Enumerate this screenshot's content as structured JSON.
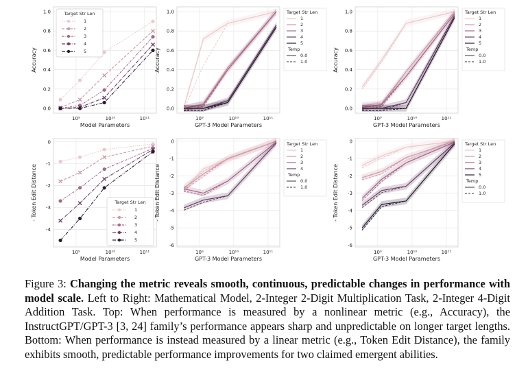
{
  "caption": {
    "label": "Figure 3:",
    "bold": "Changing the metric reveals smooth, continuous, predictable changes in performance with model scale.",
    "text": "Left to Right: Mathematical Model, 2-Integer 2-Digit Multiplication Task, 2-Integer 4-Digit Addition Task. Top: When performance is measured by a nonlinear metric (e.g., Accuracy), the InstructGPT/GPT-3 [3, 24] family’s performance appears sharp and unpredictable on longer target lengths. Bottom: When performance is instead measured by a linear metric (e.g., Token Edit Distance), the family exhibits smooth, predictable performance improvements for two claimed emergent abilities."
  },
  "colors": {
    "series": [
      "#ecc9cb",
      "#cf97a6",
      "#a56788",
      "#6b3f66",
      "#2b1a33"
    ],
    "grid": "#e6e6e6",
    "band": "#f6dede"
  },
  "chart_data": [
    {
      "type": "line",
      "xlabel": "Model Parameters",
      "ylabel": "Accuracy",
      "xscale": "log",
      "xlim": [
        220000000.0,
        220000000000.0
      ],
      "ylim": [
        -0.05,
        1.05
      ],
      "x_ticks": [
        "10⁹",
        "10¹⁰",
        "10¹¹"
      ],
      "y_ticks": [
        "0.0",
        "0.2",
        "0.4",
        "0.6",
        "0.8",
        "1.0"
      ],
      "legend": {
        "title": "Target Str Len",
        "entries": [
          "1",
          "2",
          "3",
          "4",
          "5"
        ],
        "placement": "top-left"
      },
      "x": [
        350000000.0,
        1300000000.0,
        6700000000.0,
        175000000000.0
      ],
      "series": [
        {
          "name": "1",
          "values": [
            0.09,
            0.29,
            0.58,
            0.9
          ]
        },
        {
          "name": "2",
          "values": [
            0.01,
            0.09,
            0.34,
            0.8
          ]
        },
        {
          "name": "3",
          "values": [
            0.0,
            0.03,
            0.19,
            0.74
          ]
        },
        {
          "name": "4",
          "values": [
            0.0,
            0.01,
            0.11,
            0.66
          ]
        },
        {
          "name": "5",
          "values": [
            0.0,
            0.0,
            0.06,
            0.6
          ]
        }
      ]
    },
    {
      "type": "line",
      "xlabel": "GPT-3 Model Parameters",
      "ylabel": "Accuracy",
      "xscale": "log",
      "xlim": [
        220000000.0,
        220000000000.0
      ],
      "ylim": [
        -0.05,
        1.05
      ],
      "x_ticks": [
        "10⁹",
        "10¹⁰",
        "10¹¹"
      ],
      "y_ticks": [
        "0.0",
        "0.2",
        "0.4",
        "0.6",
        "0.8",
        "1.0"
      ],
      "legend": {
        "title": "Target Str Len",
        "entries": [
          "1",
          "2",
          "3",
          "4",
          "5"
        ],
        "subtitle": "Temp",
        "style_entries": [
          "0.0",
          "1.0"
        ],
        "placement": "outside-right"
      },
      "x": [
        350000000.0,
        1300000000.0,
        6700000000.0,
        175000000000.0
      ],
      "series": [
        {
          "name": "1",
          "values": [
            0.01,
            0.72,
            0.88,
            1.0
          ]
        },
        {
          "name": "2",
          "values": [
            0.0,
            0.05,
            0.42,
            1.0
          ]
        },
        {
          "name": "3",
          "values": [
            0.0,
            0.04,
            0.4,
            1.0
          ]
        },
        {
          "name": "4",
          "values": [
            0.0,
            0.0,
            0.08,
            0.86
          ]
        },
        {
          "name": "5",
          "values": [
            0.0,
            0.0,
            0.06,
            0.84
          ]
        }
      ]
    },
    {
      "type": "line",
      "xlabel": "GPT-3 Model Parameters",
      "ylabel": "Accuracy",
      "xscale": "log",
      "xlim": [
        220000000.0,
        220000000000.0
      ],
      "ylim": [
        -0.05,
        1.05
      ],
      "x_ticks": [
        "10⁹",
        "10¹⁰",
        "10¹¹"
      ],
      "y_ticks": [
        "0.0",
        "0.2",
        "0.4",
        "0.6",
        "0.8",
        "1.0"
      ],
      "legend": {
        "title": "Target Str Len",
        "entries": [
          "1",
          "2",
          "3",
          "4",
          "5"
        ],
        "subtitle": "Temp",
        "style_entries": [
          "0.0",
          "1.0"
        ],
        "placement": "outside-right"
      },
      "x": [
        350000000.0,
        1300000000.0,
        6700000000.0,
        175000000000.0
      ],
      "series": [
        {
          "name": "1",
          "values": [
            0.22,
            0.5,
            0.88,
            1.0
          ]
        },
        {
          "name": "2",
          "values": [
            0.03,
            0.05,
            0.38,
            1.0
          ]
        },
        {
          "name": "3",
          "values": [
            0.01,
            0.04,
            0.33,
            0.98
          ]
        },
        {
          "name": "4",
          "values": [
            0.0,
            0.0,
            0.06,
            0.96
          ]
        },
        {
          "name": "5",
          "values": [
            0.0,
            0.0,
            0.0,
            0.94
          ]
        }
      ]
    },
    {
      "type": "line",
      "xlabel": "Model Parameters",
      "ylabel": "- Token Edit Distance",
      "xscale": "log",
      "xlim": [
        220000000.0,
        220000000000.0
      ],
      "ylim": [
        -4.8,
        0.15
      ],
      "x_ticks": [
        "10⁹",
        "10¹⁰",
        "10¹¹"
      ],
      "y_ticks": [
        "0",
        "-1",
        "-2",
        "-3",
        "-4"
      ],
      "legend": {
        "title": "Target Str Len",
        "entries": [
          "1",
          "2",
          "3",
          "4",
          "5"
        ],
        "placement": "bottom-right"
      },
      "x": [
        350000000.0,
        1300000000.0,
        6700000000.0,
        175000000000.0
      ],
      "series": [
        {
          "name": "1",
          "values": [
            -0.9,
            -0.7,
            -0.35,
            -0.1
          ]
        },
        {
          "name": "2",
          "values": [
            -1.8,
            -1.4,
            -0.7,
            -0.2
          ]
        },
        {
          "name": "3",
          "values": [
            -2.7,
            -2.1,
            -1.25,
            -0.3
          ]
        },
        {
          "name": "4",
          "values": [
            -3.6,
            -2.8,
            -1.7,
            -0.35
          ]
        },
        {
          "name": "5",
          "values": [
            -4.5,
            -3.5,
            -2.1,
            -0.45
          ]
        }
      ]
    },
    {
      "type": "line",
      "xlabel": "GPT-3 Model Parameters",
      "ylabel": "- Token Edit Distance",
      "xscale": "log",
      "xlim": [
        220000000.0,
        220000000000.0
      ],
      "ylim": [
        -6.1,
        0.15
      ],
      "x_ticks": [
        "10⁹",
        "10¹⁰",
        "10¹¹"
      ],
      "y_ticks": [
        "0",
        "-1",
        "-2",
        "-3",
        "-4",
        "-5",
        "-6"
      ],
      "legend": {
        "title": "Target Str Len",
        "entries": [
          "1",
          "2",
          "3",
          "4"
        ],
        "subtitle": "Temp",
        "style_entries": [
          "0.0",
          "1.0"
        ],
        "placement": "outside-right"
      },
      "x": [
        350000000.0,
        1300000000.0,
        6700000000.0,
        175000000000.0
      ],
      "series": [
        {
          "name": "1",
          "values": [
            -2.8,
            -1.6,
            -1.05,
            0.0
          ]
        },
        {
          "name": "2",
          "values": [
            -2.7,
            -1.9,
            -1.0,
            0.0
          ]
        },
        {
          "name": "3",
          "values": [
            -2.75,
            -3.0,
            -2.3,
            -0.05
          ]
        },
        {
          "name": "4",
          "values": [
            -3.85,
            -3.4,
            -3.15,
            -0.1
          ]
        }
      ]
    },
    {
      "type": "line",
      "xlabel": "GPT-3 Model Parameters",
      "ylabel": "- Token Edit Distance",
      "xscale": "log",
      "xlim": [
        220000000.0,
        220000000000.0
      ],
      "ylim": [
        -6.1,
        0.15
      ],
      "x_ticks": [
        "10⁹",
        "10¹⁰",
        "10¹¹"
      ],
      "y_ticks": [
        "0",
        "-1",
        "-2",
        "-3",
        "-4",
        "-5",
        "-6"
      ],
      "legend": {
        "title": "Target Str Len",
        "entries": [
          "1",
          "2",
          "3",
          "4",
          "5"
        ],
        "subtitle": "Temp",
        "style_entries": [
          "0.0",
          "1.0"
        ],
        "placement": "outside-right"
      },
      "x": [
        350000000.0,
        1300000000.0,
        6700000000.0,
        175000000000.0
      ],
      "series": [
        {
          "name": "1",
          "values": [
            -1.4,
            -0.85,
            -0.35,
            0.0
          ]
        },
        {
          "name": "2",
          "values": [
            -2.1,
            -1.75,
            -0.95,
            0.0
          ]
        },
        {
          "name": "3",
          "values": [
            -3.3,
            -2.2,
            -1.25,
            -0.05
          ]
        },
        {
          "name": "4",
          "values": [
            -3.7,
            -2.85,
            -2.6,
            -0.1
          ]
        },
        {
          "name": "5",
          "values": [
            -5.0,
            -3.65,
            -3.45,
            -0.15
          ]
        }
      ]
    }
  ]
}
